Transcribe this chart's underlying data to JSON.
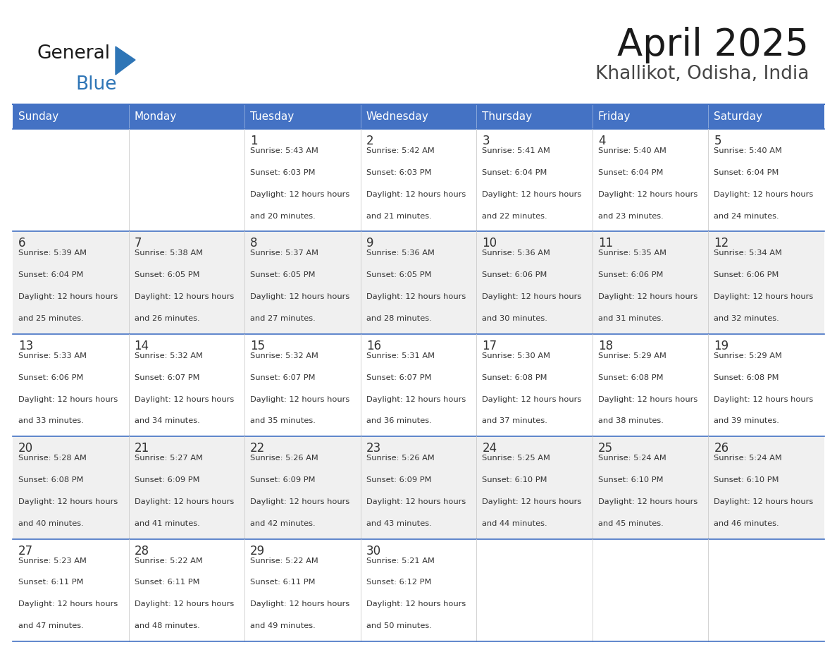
{
  "title": "April 2025",
  "subtitle": "Khallikot, Odisha, India",
  "header_color": "#4472C4",
  "header_text_color": "#FFFFFF",
  "cell_bg_even": "#FFFFFF",
  "cell_bg_odd": "#F0F0F0",
  "text_color": "#333333",
  "border_color": "#4472C4",
  "line_color": "#AAAAAA",
  "days_of_week": [
    "Sunday",
    "Monday",
    "Tuesday",
    "Wednesday",
    "Thursday",
    "Friday",
    "Saturday"
  ],
  "calendar_data": [
    [
      {
        "day": "",
        "sunrise": "",
        "sunset": "",
        "daylight": ""
      },
      {
        "day": "",
        "sunrise": "",
        "sunset": "",
        "daylight": ""
      },
      {
        "day": "1",
        "sunrise": "5:43 AM",
        "sunset": "6:03 PM",
        "daylight": "12 hours and 20 minutes."
      },
      {
        "day": "2",
        "sunrise": "5:42 AM",
        "sunset": "6:03 PM",
        "daylight": "12 hours and 21 minutes."
      },
      {
        "day": "3",
        "sunrise": "5:41 AM",
        "sunset": "6:04 PM",
        "daylight": "12 hours and 22 minutes."
      },
      {
        "day": "4",
        "sunrise": "5:40 AM",
        "sunset": "6:04 PM",
        "daylight": "12 hours and 23 minutes."
      },
      {
        "day": "5",
        "sunrise": "5:40 AM",
        "sunset": "6:04 PM",
        "daylight": "12 hours and 24 minutes."
      }
    ],
    [
      {
        "day": "6",
        "sunrise": "5:39 AM",
        "sunset": "6:04 PM",
        "daylight": "12 hours and 25 minutes."
      },
      {
        "day": "7",
        "sunrise": "5:38 AM",
        "sunset": "6:05 PM",
        "daylight": "12 hours and 26 minutes."
      },
      {
        "day": "8",
        "sunrise": "5:37 AM",
        "sunset": "6:05 PM",
        "daylight": "12 hours and 27 minutes."
      },
      {
        "day": "9",
        "sunrise": "5:36 AM",
        "sunset": "6:05 PM",
        "daylight": "12 hours and 28 minutes."
      },
      {
        "day": "10",
        "sunrise": "5:36 AM",
        "sunset": "6:06 PM",
        "daylight": "12 hours and 30 minutes."
      },
      {
        "day": "11",
        "sunrise": "5:35 AM",
        "sunset": "6:06 PM",
        "daylight": "12 hours and 31 minutes."
      },
      {
        "day": "12",
        "sunrise": "5:34 AM",
        "sunset": "6:06 PM",
        "daylight": "12 hours and 32 minutes."
      }
    ],
    [
      {
        "day": "13",
        "sunrise": "5:33 AM",
        "sunset": "6:06 PM",
        "daylight": "12 hours and 33 minutes."
      },
      {
        "day": "14",
        "sunrise": "5:32 AM",
        "sunset": "6:07 PM",
        "daylight": "12 hours and 34 minutes."
      },
      {
        "day": "15",
        "sunrise": "5:32 AM",
        "sunset": "6:07 PM",
        "daylight": "12 hours and 35 minutes."
      },
      {
        "day": "16",
        "sunrise": "5:31 AM",
        "sunset": "6:07 PM",
        "daylight": "12 hours and 36 minutes."
      },
      {
        "day": "17",
        "sunrise": "5:30 AM",
        "sunset": "6:08 PM",
        "daylight": "12 hours and 37 minutes."
      },
      {
        "day": "18",
        "sunrise": "5:29 AM",
        "sunset": "6:08 PM",
        "daylight": "12 hours and 38 minutes."
      },
      {
        "day": "19",
        "sunrise": "5:29 AM",
        "sunset": "6:08 PM",
        "daylight": "12 hours and 39 minutes."
      }
    ],
    [
      {
        "day": "20",
        "sunrise": "5:28 AM",
        "sunset": "6:08 PM",
        "daylight": "12 hours and 40 minutes."
      },
      {
        "day": "21",
        "sunrise": "5:27 AM",
        "sunset": "6:09 PM",
        "daylight": "12 hours and 41 minutes."
      },
      {
        "day": "22",
        "sunrise": "5:26 AM",
        "sunset": "6:09 PM",
        "daylight": "12 hours and 42 minutes."
      },
      {
        "day": "23",
        "sunrise": "5:26 AM",
        "sunset": "6:09 PM",
        "daylight": "12 hours and 43 minutes."
      },
      {
        "day": "24",
        "sunrise": "5:25 AM",
        "sunset": "6:10 PM",
        "daylight": "12 hours and 44 minutes."
      },
      {
        "day": "25",
        "sunrise": "5:24 AM",
        "sunset": "6:10 PM",
        "daylight": "12 hours and 45 minutes."
      },
      {
        "day": "26",
        "sunrise": "5:24 AM",
        "sunset": "6:10 PM",
        "daylight": "12 hours and 46 minutes."
      }
    ],
    [
      {
        "day": "27",
        "sunrise": "5:23 AM",
        "sunset": "6:11 PM",
        "daylight": "12 hours and 47 minutes."
      },
      {
        "day": "28",
        "sunrise": "5:22 AM",
        "sunset": "6:11 PM",
        "daylight": "12 hours and 48 minutes."
      },
      {
        "day": "29",
        "sunrise": "5:22 AM",
        "sunset": "6:11 PM",
        "daylight": "12 hours and 49 minutes."
      },
      {
        "day": "30",
        "sunrise": "5:21 AM",
        "sunset": "6:12 PM",
        "daylight": "12 hours and 50 minutes."
      },
      {
        "day": "",
        "sunrise": "",
        "sunset": "",
        "daylight": ""
      },
      {
        "day": "",
        "sunrise": "",
        "sunset": "",
        "daylight": ""
      },
      {
        "day": "",
        "sunrise": "",
        "sunset": "",
        "daylight": ""
      }
    ]
  ],
  "logo_color_general": "#1A1A1A",
  "logo_color_blue": "#2E75B6",
  "logo_triangle_color": "#2E75B6"
}
